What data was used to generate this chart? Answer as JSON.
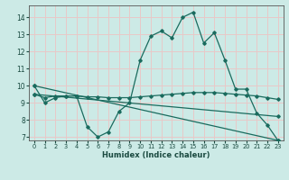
{
  "xlabel": "Humidex (Indice chaleur)",
  "xlim": [
    -0.5,
    23.5
  ],
  "ylim": [
    6.8,
    14.7
  ],
  "yticks": [
    7,
    8,
    9,
    10,
    11,
    12,
    13,
    14
  ],
  "xticks": [
    0,
    1,
    2,
    3,
    4,
    5,
    6,
    7,
    8,
    9,
    10,
    11,
    12,
    13,
    14,
    15,
    16,
    17,
    18,
    19,
    20,
    21,
    22,
    23
  ],
  "bg_color": "#cceae6",
  "grid_color": "#e8c8c8",
  "line_color": "#1a6b5e",
  "lines": [
    {
      "x": [
        0,
        1,
        2,
        3,
        4,
        5,
        6,
        7,
        8,
        9,
        10,
        11,
        12,
        13,
        14,
        15,
        16,
        17,
        18,
        19,
        20,
        21,
        22,
        23
      ],
      "y": [
        10.0,
        9.0,
        9.3,
        9.4,
        9.4,
        7.6,
        7.0,
        7.3,
        8.5,
        9.0,
        11.5,
        12.9,
        13.2,
        12.8,
        14.0,
        14.3,
        12.5,
        13.1,
        11.5,
        9.8,
        9.8,
        8.4,
        7.7,
        6.8
      ]
    },
    {
      "x": [
        0,
        1,
        2,
        3,
        4,
        5,
        6,
        7,
        8,
        9,
        10,
        11,
        12,
        13,
        14,
        15,
        16,
        17,
        18,
        19,
        20,
        21,
        22,
        23
      ],
      "y": [
        9.5,
        9.3,
        9.4,
        9.4,
        9.4,
        9.35,
        9.35,
        9.3,
        9.3,
        9.3,
        9.35,
        9.4,
        9.45,
        9.5,
        9.55,
        9.6,
        9.6,
        9.6,
        9.55,
        9.5,
        9.45,
        9.4,
        9.3,
        9.2
      ]
    },
    {
      "x": [
        0,
        23
      ],
      "y": [
        9.5,
        8.2
      ]
    },
    {
      "x": [
        0,
        23
      ],
      "y": [
        10.0,
        6.8
      ]
    }
  ]
}
